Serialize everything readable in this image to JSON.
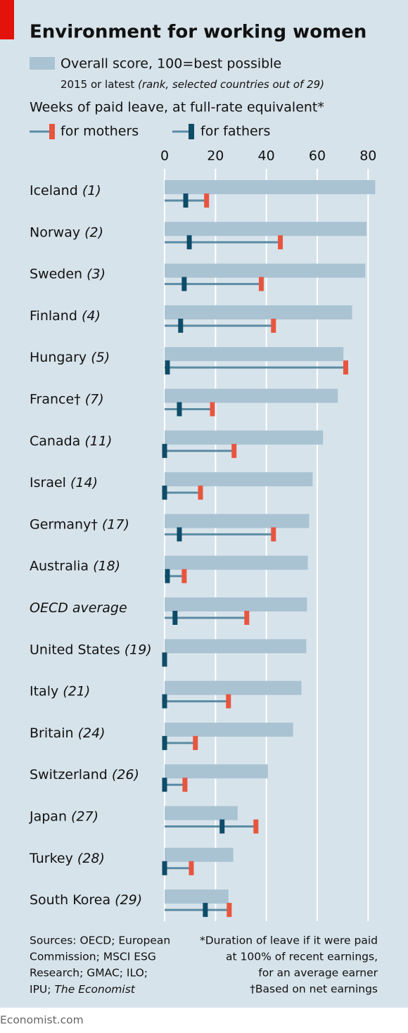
{
  "chart_data": {
    "type": "bar",
    "title": "Environment for working women",
    "legend_note": "2015 or latest",
    "legend_note_italic": "(rank, selected countries out of 29)",
    "leave_heading": "Weeks of paid leave, at full-rate equivalent*",
    "categories": [
      "Iceland",
      "Norway",
      "Sweden",
      "Finland",
      "Hungary",
      "France†",
      "Canada",
      "Israel",
      "Germany†",
      "Australia",
      "OECD average",
      "United States",
      "Italy",
      "Britain",
      "Switzerland",
      "Japan",
      "Turkey",
      "South Korea"
    ],
    "ranks": [
      "(1)",
      "(2)",
      "(3)",
      "(4)",
      "(5)",
      "(7)",
      "(11)",
      "(14)",
      "(17)",
      "(18)",
      null,
      "(19)",
      "(21)",
      "(24)",
      "(26)",
      "(27)",
      "(28)",
      "(29)"
    ],
    "series": [
      {
        "name": "Overall score, 100=best possible",
        "color": "#a9c3d3",
        "values": [
          82.8,
          79.4,
          78.9,
          73.7,
          70.3,
          68.1,
          62.3,
          58.2,
          56.8,
          56.3,
          56,
          55.7,
          53.8,
          50.5,
          40.6,
          28.7,
          27,
          25.1
        ]
      },
      {
        "name": "for mothers",
        "color": "#e8553e",
        "values": [
          16.5,
          45.5,
          38,
          42.8,
          71.2,
          18.8,
          27.3,
          14.1,
          42.8,
          7.7,
          32.3,
          0,
          25.1,
          12.1,
          8,
          35.9,
          10.5,
          25.4
        ]
      },
      {
        "name": "for fathers",
        "color": "#0e4c68",
        "values": [
          8.3,
          9.7,
          7.7,
          6.3,
          1.1,
          5.8,
          0,
          0,
          5.8,
          1.1,
          4.1,
          0,
          0,
          0,
          0,
          22.6,
          0,
          16
        ]
      }
    ],
    "line_color": "#5b8ba3",
    "xlim": [
      0,
      86
    ],
    "xticks": [
      0,
      20,
      40,
      60,
      80
    ],
    "grid": true,
    "sources": [
      "Sources: OECD; European",
      "Commission; MSCI ESG",
      "Research; GMAC; ILO;",
      "IPU;",
      "The Economist"
    ],
    "footnotes": [
      "*Duration of leave if it were paid",
      "at 100% of recent earnings,",
      "for an average earner",
      "†Based on net earnings"
    ],
    "credit": "Economist.com"
  }
}
